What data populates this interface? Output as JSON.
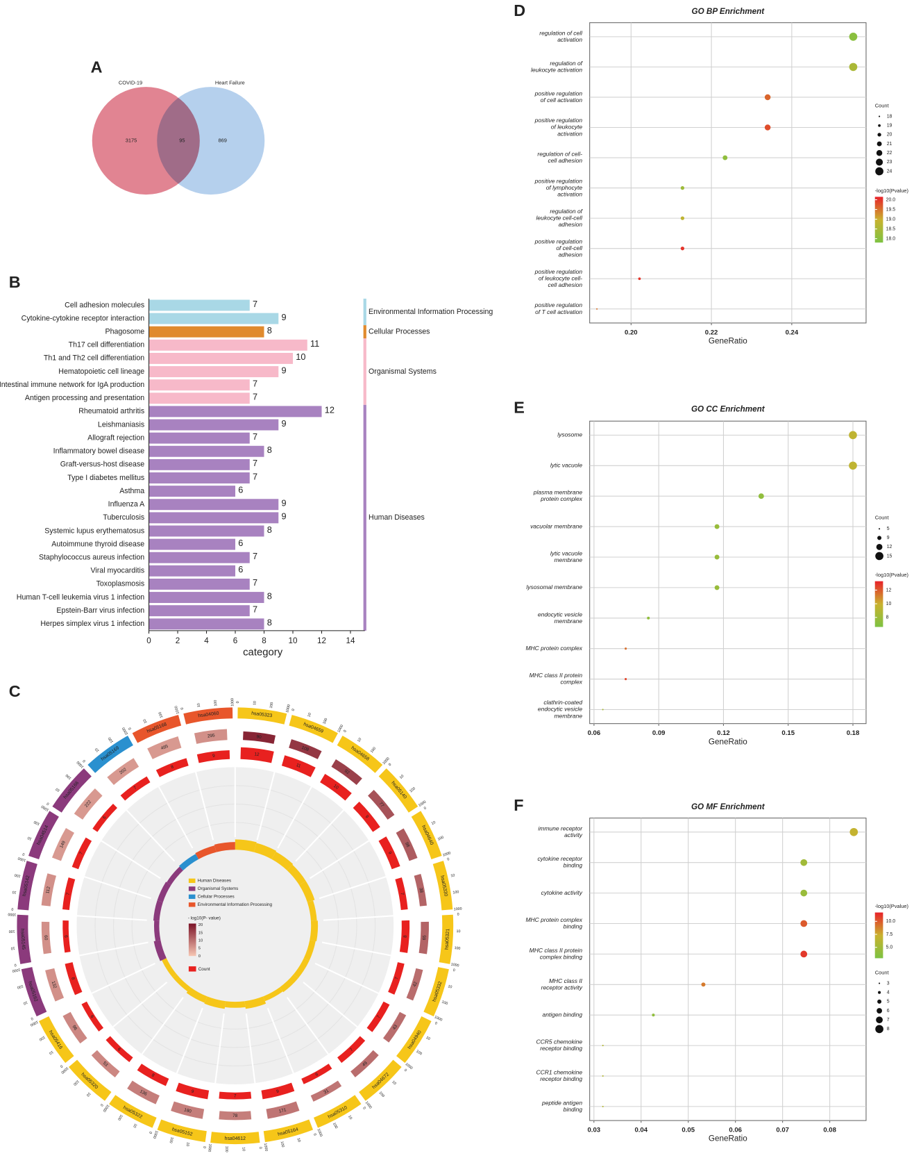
{
  "chart_data": [
    {
      "type": "venn",
      "panel": "A",
      "sets": [
        {
          "name": "COVID-19",
          "color": "#dc6f7f",
          "value": 3175
        },
        {
          "name": "Heart Failure",
          "color": "#a8c8ea",
          "value": 869
        }
      ],
      "overlap": 95
    },
    {
      "type": "bar",
      "panel": "B",
      "xlabel": "category",
      "xlim": [
        0,
        15
      ],
      "xticks": [
        0,
        2,
        4,
        6,
        8,
        10,
        12,
        14
      ],
      "groups": [
        {
          "name": "Environmental Information Processing",
          "color": "#a9d8e6",
          "categories": [
            "Cell adhesion molecules",
            "Cytokine-cytokine receptor interaction"
          ],
          "values": [
            7,
            9
          ]
        },
        {
          "name": "Cellular Processes",
          "color": "#e08a2e",
          "categories": [
            "Phagosome"
          ],
          "values": [
            8
          ]
        },
        {
          "name": "Organismal Systems",
          "color": "#f7b9c9",
          "categories": [
            "Th17 cell differentiation",
            "Th1 and Th2 cell differentiation",
            "Hematopoietic cell lineage",
            "Intestinal immune network for IgA production",
            "Antigen processing and presentation"
          ],
          "values": [
            11,
            10,
            9,
            7,
            7
          ]
        },
        {
          "name": "Human Diseases",
          "color": "#a882c0",
          "categories": [
            "Rheumatoid arthritis",
            "Leishmaniasis",
            "Allograft rejection",
            "Inflammatory bowel disease",
            "Graft-versus-host disease",
            "Type I diabetes mellitus",
            "Asthma",
            "Influenza A",
            "Tuberculosis",
            "Systemic lupus erythematosus",
            "Autoimmune thyroid disease",
            "Staphylococcus aureus infection",
            "Viral myocarditis",
            "Toxoplasmosis",
            "Human T-cell leukemia virus 1 infection",
            "Epstein-Barr virus infection",
            "Herpes simplex virus 1 infection"
          ],
          "values": [
            12,
            9,
            7,
            8,
            7,
            7,
            6,
            9,
            9,
            8,
            6,
            7,
            6,
            7,
            8,
            7,
            8
          ]
        }
      ]
    },
    {
      "type": "circos",
      "panel": "C",
      "outer_ticks": [
        0,
        10,
        100,
        1000
      ],
      "p_title": "- log10(P- value)",
      "p_ticks": [
        20,
        15,
        10,
        5,
        0
      ],
      "p_colors": [
        "#f7c6b3",
        "#7b1327"
      ],
      "count_title": "Count",
      "count_color": "#e8211f",
      "groups": [
        {
          "name": "Human Diseases",
          "color": "#f6c619",
          "sectors": [
            {
              "id": "hsa05323",
              "count": 12,
              "genes": 90,
              "neglog10p": 18
            },
            {
              "id": "hsa04659",
              "count": 11,
              "genes": 108,
              "neglog10p": 16
            },
            {
              "id": "hsa04658",
              "count": 10,
              "genes": 92,
              "neglog10p": 15
            },
            {
              "id": "hsa05140",
              "count": 9,
              "genes": 77,
              "neglog10p": 13
            },
            {
              "id": "hsa04640",
              "count": 9,
              "genes": 98,
              "neglog10p": 12
            },
            {
              "id": "hsa05330",
              "count": 7,
              "genes": 38,
              "neglog10p": 11
            },
            {
              "id": "hsa05321",
              "count": 8,
              "genes": 65,
              "neglog10p": 11
            },
            {
              "id": "hsa05332",
              "count": 7,
              "genes": 42,
              "neglog10p": 10
            },
            {
              "id": "hsa04940",
              "count": 7,
              "genes": 43,
              "neglog10p": 10
            },
            {
              "id": "hsa04672",
              "count": 7,
              "genes": 49,
              "neglog10p": 10
            },
            {
              "id": "hsa05310",
              "count": 6,
              "genes": 31,
              "neglog10p": 9
            },
            {
              "id": "hsa05164",
              "count": 9,
              "genes": 171,
              "neglog10p": 9
            },
            {
              "id": "hsa04612",
              "count": 7,
              "genes": 78,
              "neglog10p": 8
            },
            {
              "id": "hsa05152",
              "count": 9,
              "genes": 180,
              "neglog10p": 8
            },
            {
              "id": "hsa05322",
              "count": 8,
              "genes": 136,
              "neglog10p": 8
            },
            {
              "id": "hsa05320",
              "count": 6,
              "genes": 53,
              "neglog10p": 7
            },
            {
              "id": "hsa05416",
              "count": 6,
              "genes": 96,
              "neglog10p": 7
            }
          ]
        },
        {
          "name": "Organismal Systems",
          "color": "#8b3a7c",
          "sectors": [
            {
              "id": "hsa05162",
              "count": 8,
              "genes": 132,
              "neglog10p": 6
            },
            {
              "id": "hsa05145",
              "count": 6,
              "genes": 60,
              "neglog10p": 6
            },
            {
              "id": "hsa05142",
              "count": 7,
              "genes": 112,
              "neglog10p": 6
            },
            {
              "id": "hsa04514",
              "count": 7,
              "genes": 149,
              "neglog10p": 5
            },
            {
              "id": "hsa05166",
              "count": 6,
              "genes": 222,
              "neglog10p": 5
            }
          ]
        },
        {
          "name": "Cellular Processes",
          "color": "#2a90cf",
          "sectors": [
            {
              "id": "hsa05169",
              "count": 7,
              "genes": 202,
              "neglog10p": 5
            }
          ]
        },
        {
          "name": "Environmental Information Processing",
          "color": "#e8562b",
          "sectors": [
            {
              "id": "hsa05168",
              "count": 8,
              "genes": 495,
              "neglog10p": 5
            },
            {
              "id": "hsa04060",
              "count": 9,
              "genes": 295,
              "neglog10p": 6
            }
          ]
        }
      ]
    },
    {
      "type": "dot",
      "panel": "D",
      "title": "GO BP Enrichment",
      "xlabel": "GeneRatio",
      "categories": [
        [
          "regulation of cell",
          "activation"
        ],
        [
          "regulation of",
          "leukocyte activation"
        ],
        [
          "positive regulation",
          "of cell activation"
        ],
        [
          "positive regulation",
          "of leukocyte",
          "activation"
        ],
        [
          "regulation of cell-",
          "cell adhesion"
        ],
        [
          "positive regulation",
          "of lymphocyte",
          "activation"
        ],
        [
          "regulation of",
          "leukocyte cell-cell",
          "adhesion"
        ],
        [
          "positive regulation",
          "of cell-cell",
          "adhesion"
        ],
        [
          "positive regulation",
          "of leukocyte cell-",
          "cell adhesion"
        ],
        [
          "positive regulation",
          "of T cell activation"
        ]
      ],
      "x": [
        0.2553,
        0.2553,
        0.234,
        0.234,
        0.2234,
        0.2128,
        0.2128,
        0.2128,
        0.2021,
        0.1915
      ],
      "count": [
        24,
        24,
        22,
        22,
        21,
        20,
        20,
        20,
        19,
        18
      ],
      "neglog10p": [
        18.0,
        18.5,
        19.6,
        19.8,
        18.1,
        18.3,
        18.8,
        20.0,
        20.0,
        19.5
      ],
      "xlim": [
        0.1897,
        0.2585
      ],
      "xticks": [
        {
          "value": 0.2,
          "label": "0.20"
        },
        0.22,
        0.24
      ],
      "size_title": "Count",
      "size_ticks": [
        18,
        19,
        20,
        21,
        22,
        23,
        24
      ],
      "color_title": "-log10(Pvalue)",
      "color_lim": [
        17.8,
        20.15
      ],
      "color_ticks": [
        {
          "value": 20,
          "label": "20.0"
        },
        19.5,
        {
          "value": 19,
          "label": "19.0"
        },
        18.5,
        {
          "value": 18,
          "label": "18.0"
        }
      ],
      "colormap": [
        "#7dc242",
        "#c9b22f",
        "#e8222a"
      ]
    },
    {
      "type": "dot",
      "panel": "E",
      "title": "GO CC Enrichment",
      "xlabel": "GeneRatio",
      "categories": [
        [
          "lysosome"
        ],
        [
          "lytic vacuole"
        ],
        [
          "plasma membrane",
          "protein complex"
        ],
        [
          "vacuolar membrane"
        ],
        [
          "lytic vacuole",
          "membrane"
        ],
        [
          "lysosomal membrane"
        ],
        [
          "endocytic vesicle",
          "membrane"
        ],
        [
          "MHC protein complex"
        ],
        [
          "MHC class II protein",
          "complex"
        ],
        [
          "clathrin-coated",
          "endocytic vesicle",
          "membrane"
        ]
      ],
      "x": [
        0.18,
        0.18,
        0.1375,
        0.117,
        0.117,
        0.117,
        0.0852,
        0.0747,
        0.0747,
        0.0641
      ],
      "count": [
        15,
        15,
        11,
        10,
        10,
        10,
        7,
        6,
        6,
        5
      ],
      "neglog10p": [
        9.5,
        9.5,
        7.5,
        7.8,
        7.8,
        7.8,
        7.5,
        11.5,
        12.5,
        8.5
      ],
      "xlim": [
        0.058,
        0.1861
      ],
      "xticks": [
        0.06,
        0.09,
        0.12,
        0.15,
        0.18
      ],
      "size_title": "Count",
      "size_ticks": [
        5,
        9,
        12,
        15
      ],
      "color_title": "-log10(Pvalue)",
      "color_lim": [
        6.6,
        13.3
      ],
      "color_ticks": [
        12,
        10,
        8
      ],
      "colormap": [
        "#7dc242",
        "#c9b22f",
        "#e8222a"
      ]
    },
    {
      "type": "dot",
      "panel": "F",
      "title": "GO MF Enrichment",
      "xlabel": "GeneRatio",
      "categories": [
        [
          "immune receptor",
          "activity"
        ],
        [
          "cytokine receptor",
          "binding"
        ],
        [
          "cytokine activity"
        ],
        [
          "MHC protein complex",
          "binding"
        ],
        [
          "MHC class II protein",
          "complex binding"
        ],
        [
          "MHC class II",
          "receptor activity"
        ],
        [
          "antigen binding"
        ],
        [
          "CCR5 chemokine",
          "receptor binding"
        ],
        [
          "CCR1 chemokine",
          "receptor binding"
        ],
        [
          "peptide antigen",
          "binding"
        ]
      ],
      "x": [
        0.0851,
        0.0745,
        0.0745,
        0.0745,
        0.0745,
        0.0532,
        0.0426,
        0.0319,
        0.0319,
        0.0319
      ],
      "count": [
        8,
        7,
        7,
        7,
        7,
        5,
        4,
        3,
        3,
        3
      ],
      "neglog10p": [
        7,
        5,
        4.5,
        10,
        11,
        9,
        4,
        6,
        6,
        6
      ],
      "xlim": [
        0.0291,
        0.0877
      ],
      "xticks": [
        0.03,
        0.04,
        0.05,
        0.06,
        0.07,
        0.08
      ],
      "size_title": "Count",
      "size_ticks": [
        3,
        4,
        5,
        6,
        7,
        8
      ],
      "color_title": "-log10(Pvalue)",
      "color_lim": [
        2.9,
        11.7
      ],
      "color_ticks": [
        {
          "value": 10,
          "label": "10.0"
        },
        7.5,
        {
          "value": 5,
          "label": "5.0"
        }
      ],
      "colormap": [
        "#7dc242",
        "#c9b22f",
        "#e8222a"
      ]
    }
  ]
}
